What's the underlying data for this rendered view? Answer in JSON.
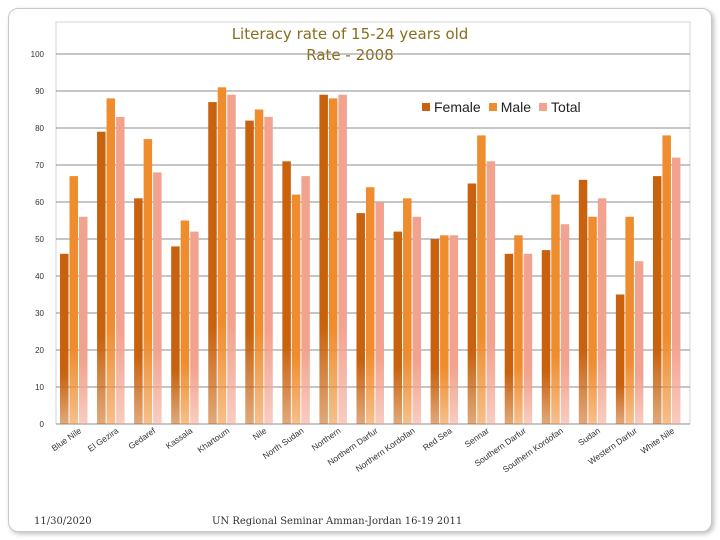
{
  "footer": {
    "date": "11/30/2020",
    "event": "UN Regional Seminar  Amman-Jordan 16-19 2011"
  },
  "colors": {
    "female": "#c8620f",
    "male": "#ef8c2e",
    "total": "#f2a38f",
    "grid": "#8c8c8c",
    "title": "#8a6d1e"
  },
  "chart_data": {
    "type": "bar",
    "title": "Literacy rate of 15-24 years old",
    "subtitle": "Rate - 2008",
    "xlabel": "",
    "ylabel": "",
    "ylim": [
      0,
      100
    ],
    "yticks": [
      0,
      10,
      20,
      30,
      40,
      50,
      60,
      70,
      80,
      90,
      100
    ],
    "grid": true,
    "legend_position": "top-right",
    "categories": [
      "Blue Nile",
      "El Gezira",
      "Gedaref",
      "Kassala",
      "Khartoum",
      "Nile",
      "North Sudan",
      "Northern",
      "Northern Darfur",
      "Northern Kordofan",
      "Red Sea",
      "Sennar",
      "Southern Darfur",
      "Southern Kordofan",
      "Sudan",
      "Western Darfur",
      "White Nile"
    ],
    "series": [
      {
        "name": "Female",
        "values": [
          46,
          79,
          61,
          48,
          87,
          82,
          71,
          89,
          57,
          52,
          50,
          65,
          46,
          47,
          66,
          35,
          67
        ]
      },
      {
        "name": "Male",
        "values": [
          67,
          88,
          77,
          55,
          91,
          85,
          62,
          88,
          64,
          61,
          51,
          78,
          51,
          62,
          56,
          56,
          78
        ]
      },
      {
        "name": "Total",
        "values": [
          56,
          83,
          68,
          52,
          89,
          83,
          67,
          89,
          60,
          56,
          51,
          71,
          46,
          54,
          61,
          44,
          72
        ]
      }
    ]
  }
}
